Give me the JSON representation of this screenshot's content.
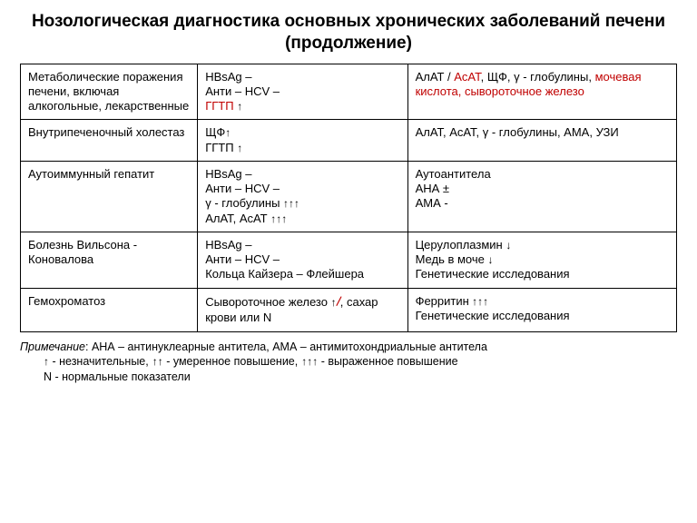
{
  "title": "Нозологическая диагностика основных хронических заболеваний печени (продолжение)",
  "glyphs": {
    "up1": "↑",
    "up2": "↑↑",
    "up3": "↑↑↑",
    "down1": "↓",
    "slash": "/"
  },
  "colors": {
    "highlight": "#c00000",
    "text": "#000000",
    "border": "#000000",
    "background": "#ffffff"
  },
  "typography": {
    "title_fontsize": 19,
    "cell_fontsize": 13,
    "note_fontsize": 12.5,
    "title_weight": 700
  },
  "table": {
    "column_widths_pct": [
      27,
      32,
      41
    ],
    "rows": [
      {
        "c1": "Метаболические поражения печени, включая алкогольные, лекарственные",
        "c2_parts": [
          {
            "text": "HBsAg –"
          },
          {
            "text": "Анти – HCV –"
          },
          {
            "text": "ГГТП ",
            "red": true,
            "suffix_arrow": "up1"
          }
        ],
        "c3_parts": [
          {
            "segments": [
              {
                "text": "АлАТ / "
              },
              {
                "text": "АсАТ",
                "red": true
              },
              {
                "text": ", ЩФ, γ - глобулины, "
              },
              {
                "text": "мочевая кислота, сывороточное железо",
                "red": true
              }
            ]
          }
        ]
      },
      {
        "c1": "Внутрипеченочный холестаз",
        "c2_parts": [
          {
            "text": "ЩФ",
            "suffix_arrow": "up1"
          },
          {
            "text": "ГГТП ",
            "suffix_arrow": "up1"
          }
        ],
        "c3_parts": [
          {
            "segments": [
              {
                "text": "АлАТ, АсАТ, γ - глобулины, АМА, УЗИ"
              }
            ]
          }
        ]
      },
      {
        "c1": "Аутоиммунный гепатит",
        "c2_parts": [
          {
            "text": "HBsAg –"
          },
          {
            "text": "Анти – HCV –"
          },
          {
            "text": "γ - глобулины ",
            "suffix_arrow": "up3"
          },
          {
            "text": "АлАТ, АсАТ ",
            "suffix_arrow": "up3"
          }
        ],
        "c3_parts": [
          {
            "segments": [
              {
                "text": "Аутоантитела"
              }
            ]
          },
          {
            "segments": [
              {
                "text": "АНА ±"
              }
            ]
          },
          {
            "segments": [
              {
                "text": "АМА -"
              }
            ]
          }
        ]
      },
      {
        "c1": "Болезнь Вильсона - Коновалова",
        "c2_parts": [
          {
            "text": "HBsAg –"
          },
          {
            "text": "Анти – HCV –"
          },
          {
            "text": "Кольца Кайзера – Флейшера"
          }
        ],
        "c3_parts": [
          {
            "segments": [
              {
                "text": "Церулоплазмин "
              }
            ],
            "suffix_arrow": "down1"
          },
          {
            "segments": [
              {
                "text": "Медь в моче "
              }
            ],
            "suffix_arrow": "down1"
          },
          {
            "segments": [
              {
                "text": "Генетические исследования"
              }
            ]
          }
        ]
      },
      {
        "c1": "Гемохроматоз",
        "c2_parts": [
          {
            "text": "Сывороточное железо ",
            "suffix_arrow": "up1",
            "inline_next": true
          },
          {
            "text": ", сахар крови ",
            "prefix_slash": true,
            "inline_next": true
          },
          {
            "text": " или N"
          }
        ],
        "c3_parts": [
          {
            "segments": [
              {
                "text": "Ферритин"
              }
            ],
            "suffix_arrow": "up3"
          },
          {
            "segments": [
              {
                "text": "Генетические исследования"
              }
            ]
          }
        ]
      }
    ]
  },
  "note": {
    "label": "Примечание",
    "line1": ": АНА – антинуклеарные антитела, АМА – антимитохондриальные антитела",
    "legend_items": [
      {
        "arrow": "up1",
        "text": " - незначительные,   "
      },
      {
        "arrow": "up2",
        "text": " - умеренное повышение,   "
      },
      {
        "arrow": "up3",
        "text": " - выраженное повышение"
      }
    ],
    "line3": "N - нормальные показатели"
  }
}
